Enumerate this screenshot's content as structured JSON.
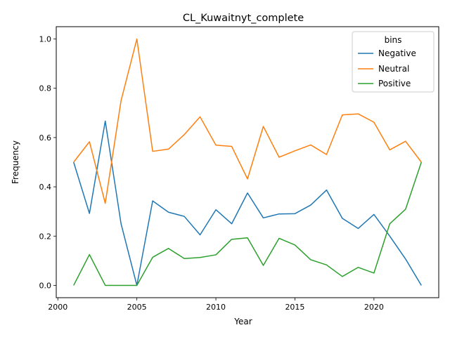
{
  "chart_data": {
    "type": "line",
    "title": "CL_Kuwaitnyt_complete",
    "xlabel": "Year",
    "ylabel": "Frequency",
    "xlim": [
      1999.9,
      2024.1
    ],
    "ylim": [
      -0.05,
      1.05
    ],
    "xticks": [
      2000,
      2005,
      2010,
      2015,
      2020
    ],
    "yticks": [
      0.0,
      0.2,
      0.4,
      0.6,
      0.8,
      1.0
    ],
    "legend": {
      "title": "bins",
      "placement": "top-right"
    },
    "x": [
      2001,
      2002,
      2003,
      2004,
      2005,
      2006,
      2007,
      2008,
      2009,
      2010,
      2011,
      2012,
      2013,
      2014,
      2015,
      2016,
      2017,
      2018,
      2019,
      2020,
      2021,
      2022,
      2023
    ],
    "series": [
      {
        "name": "Negative",
        "color": "#1f77b4",
        "values": [
          0.5,
          0.292,
          0.667,
          0.25,
          0.0,
          0.343,
          0.297,
          0.28,
          0.205,
          0.307,
          0.25,
          0.375,
          0.274,
          0.29,
          0.291,
          0.326,
          0.387,
          0.272,
          0.231,
          0.288,
          0.2,
          0.107,
          0.0
        ]
      },
      {
        "name": "Neutral",
        "color": "#ff7f0e",
        "values": [
          0.5,
          0.583,
          0.333,
          0.75,
          1.0,
          0.544,
          0.553,
          0.612,
          0.684,
          0.569,
          0.564,
          0.432,
          0.645,
          0.52,
          0.546,
          0.57,
          0.531,
          0.692,
          0.696,
          0.662,
          0.55,
          0.585,
          0.5
        ]
      },
      {
        "name": "Positive",
        "color": "#2ca02c",
        "values": [
          0.0,
          0.125,
          0.0,
          0.0,
          0.0,
          0.114,
          0.15,
          0.109,
          0.113,
          0.124,
          0.187,
          0.193,
          0.081,
          0.191,
          0.164,
          0.104,
          0.083,
          0.036,
          0.073,
          0.05,
          0.25,
          0.309,
          0.5
        ]
      }
    ]
  }
}
